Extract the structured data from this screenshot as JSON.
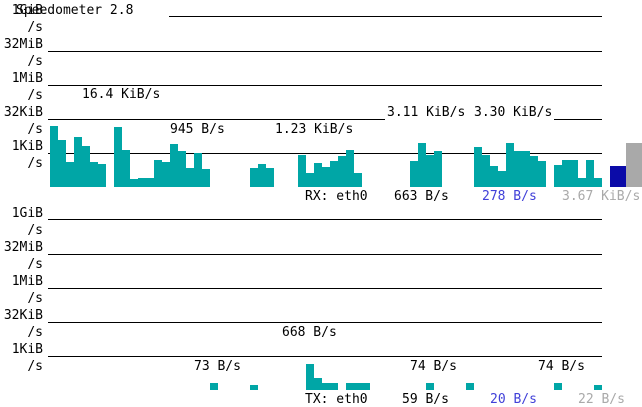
{
  "title": "Speedometer 2.8",
  "colors": {
    "bar": "#00a6a6",
    "current": "#0b0ba8",
    "average": "#a9a9a9",
    "current_text": "#4040d8",
    "average_text": "#a9a9a9",
    "gridline": "#000000"
  },
  "scale": {
    "l0": "1GiB",
    "l0u": "/s",
    "l1": "32MiB",
    "l1u": "/s",
    "l2": "1MiB",
    "l2u": "/s",
    "l3": "32KiB",
    "l3u": "/s",
    "l4": "1KiB",
    "l4u": "/s"
  },
  "rx": {
    "interface_label": "RX: eth0",
    "current": "663 B/s",
    "average": "278 B/s",
    "max": "3.67 KiB/s",
    "peaks": [
      "16.4 KiB/s",
      "945 B/s",
      "1.23 KiB/s",
      "3.11 KiB/s",
      "3.30 KiB/s"
    ]
  },
  "tx": {
    "interface_label": "TX: eth0",
    "current": "59 B/s",
    "average": "20 B/s",
    "max": "22 B/s",
    "peaks": [
      "668 B/s",
      "73 B/s",
      "74 B/s",
      "74 B/s"
    ]
  },
  "chart_data": [
    {
      "type": "bar",
      "series": [
        {
          "name": "RX: eth0",
          "values": []
        }
      ],
      "ylabel": "",
      "yticks": [
        "1GiB/s",
        "32MiB/s",
        "1MiB/s",
        "32KiB/s",
        "1KiB/s"
      ],
      "scale": "log",
      "annotations": [
        "16.4 KiB/s",
        "945 B/s",
        "1.23 KiB/s",
        "3.11 KiB/s",
        "3.30 KiB/s"
      ]
    },
    {
      "type": "bar",
      "series": [
        {
          "name": "TX: eth0",
          "values": []
        }
      ],
      "ylabel": "",
      "yticks": [
        "1GiB/s",
        "32MiB/s",
        "1MiB/s",
        "32KiB/s",
        "1KiB/s"
      ],
      "scale": "log",
      "annotations": [
        "668 B/s",
        "73 B/s",
        "74 B/s",
        "74 B/s"
      ]
    }
  ]
}
